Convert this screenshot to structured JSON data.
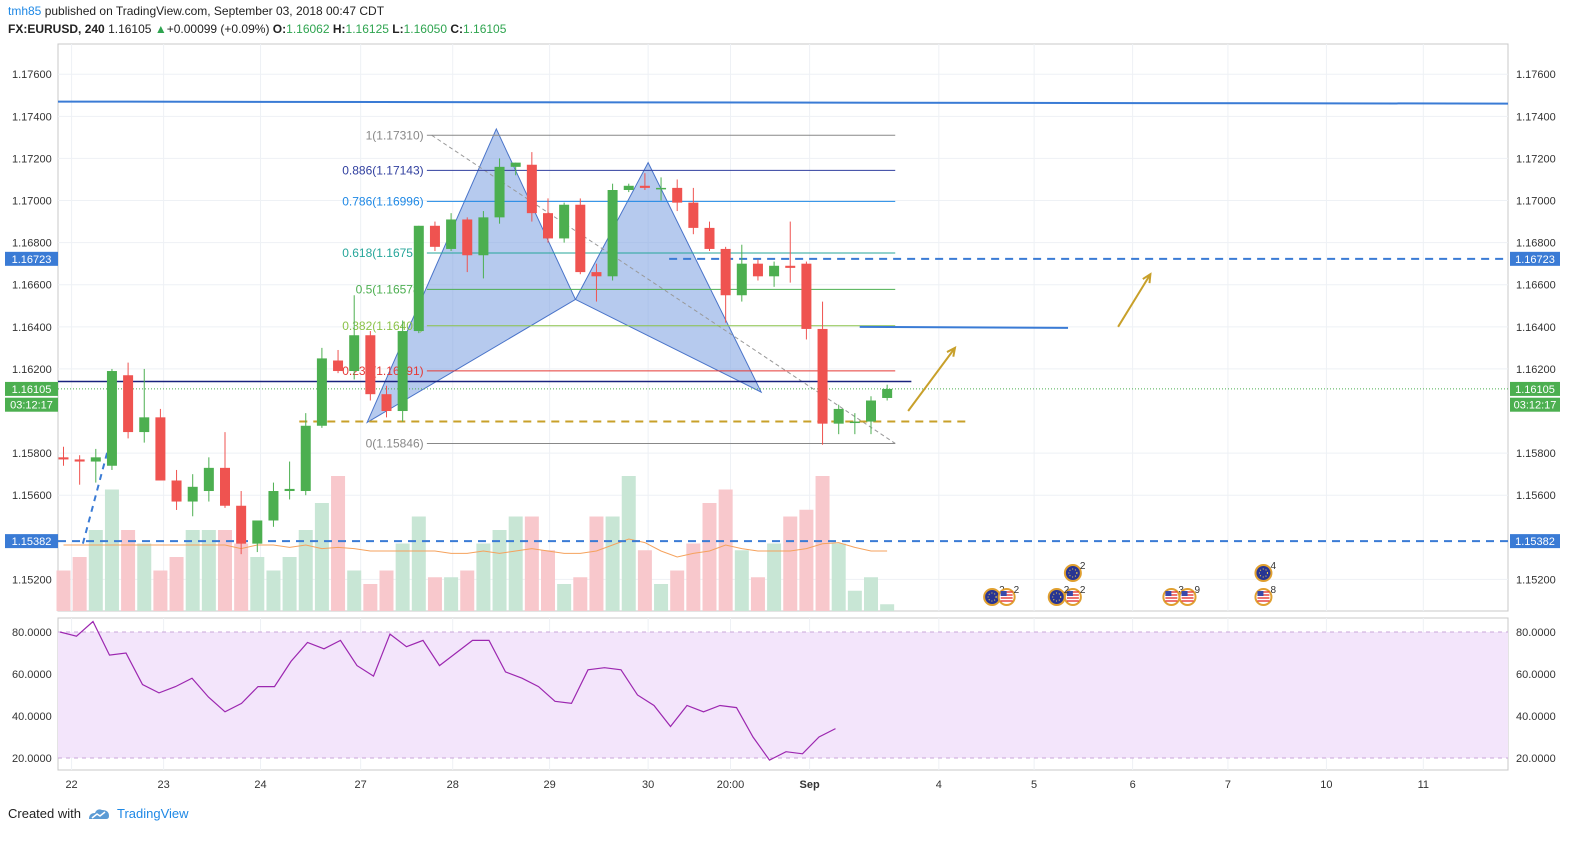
{
  "header": {
    "user": "tmh85",
    "published_text": "published on TradingView.com, September 03, 2018 00:47 CDT",
    "symbol": "FX:EURUSD",
    "interval": "240",
    "last": "1.16105",
    "change_arrow": "▲",
    "change": "+0.00099 (+0.09%)",
    "o_label": "O:",
    "o_value": "1.16062",
    "h_label": "H:",
    "h_value": "1.16125",
    "l_label": "L:",
    "l_value": "1.16050",
    "c_label": "C:",
    "c_value": "1.16105"
  },
  "footer": {
    "created_with": "Created with",
    "brand": "TradingView",
    "logo_icon": "tradingview-cloud-icon"
  },
  "colors": {
    "up": "#4caf50",
    "down": "#ef5350",
    "up_volume": "#c8e6d5",
    "down_volume": "#f8c8cc",
    "pattern_fill": "#7a9fe0",
    "rsi_line": "#9c27b0",
    "rsi_band": "#f3e5fb",
    "dashed_blue": "#3a7bd5",
    "gold": "#c8a02a",
    "price_tag_green": "#4caf50",
    "price_tag_blue": "#3a7bd5"
  },
  "chart_data": {
    "type": "candlestick",
    "symbol": "FX:EURUSD",
    "interval": "240",
    "price_axis": {
      "ylim": [
        1.1505,
        1.1775
      ],
      "ticks": [
        "1.17600",
        "1.17400",
        "1.17200",
        "1.17000",
        "1.16800",
        "1.16600",
        "1.16400",
        "1.16200",
        "1.15800",
        "1.15600",
        "1.15200"
      ]
    },
    "time_axis": {
      "ticks": [
        "22",
        "23",
        "24",
        "27",
        "28",
        "29",
        "30",
        "20:00",
        "Sep",
        "4",
        "5",
        "6",
        "7",
        "10",
        "11"
      ],
      "tick_index": [
        0.5,
        6.2,
        12.2,
        18.4,
        24.1,
        30.1,
        36.2,
        41.3,
        46.2,
        54.2,
        60.1,
        66.2,
        72.1,
        78.2,
        84.2
      ]
    },
    "candles": [
      {
        "o": 1.1578,
        "h": 1.1583,
        "l": 1.1574,
        "c": 1.1577
      },
      {
        "o": 1.1577,
        "h": 1.1579,
        "l": 1.1565,
        "c": 1.1576
      },
      {
        "o": 1.1576,
        "h": 1.1582,
        "l": 1.1566,
        "c": 1.1578
      },
      {
        "o": 1.1574,
        "h": 1.162,
        "l": 1.1572,
        "c": 1.1619
      },
      {
        "o": 1.1617,
        "h": 1.1623,
        "l": 1.1587,
        "c": 1.159
      },
      {
        "o": 1.159,
        "h": 1.162,
        "l": 1.1585,
        "c": 1.1597
      },
      {
        "o": 1.1597,
        "h": 1.1601,
        "l": 1.1567,
        "c": 1.1567
      },
      {
        "o": 1.1567,
        "h": 1.1572,
        "l": 1.1553,
        "c": 1.1557
      },
      {
        "o": 1.1557,
        "h": 1.157,
        "l": 1.155,
        "c": 1.1564
      },
      {
        "o": 1.1562,
        "h": 1.1578,
        "l": 1.1557,
        "c": 1.1573
      },
      {
        "o": 1.1573,
        "h": 1.159,
        "l": 1.1554,
        "c": 1.1555
      },
      {
        "o": 1.1555,
        "h": 1.1562,
        "l": 1.1532,
        "c": 1.1537
      },
      {
        "o": 1.1537,
        "h": 1.1548,
        "l": 1.1533,
        "c": 1.1548
      },
      {
        "o": 1.1548,
        "h": 1.1566,
        "l": 1.1545,
        "c": 1.1562
      },
      {
        "o": 1.1562,
        "h": 1.1576,
        "l": 1.1558,
        "c": 1.1563
      },
      {
        "o": 1.1562,
        "h": 1.1599,
        "l": 1.156,
        "c": 1.1593
      },
      {
        "o": 1.1593,
        "h": 1.163,
        "l": 1.1592,
        "c": 1.1625
      },
      {
        "o": 1.1624,
        "h": 1.1629,
        "l": 1.1618,
        "c": 1.1619
      },
      {
        "o": 1.1619,
        "h": 1.1655,
        "l": 1.1615,
        "c": 1.1636
      },
      {
        "o": 1.1636,
        "h": 1.1638,
        "l": 1.1605,
        "c": 1.1608
      },
      {
        "o": 1.1608,
        "h": 1.1612,
        "l": 1.1597,
        "c": 1.16
      },
      {
        "o": 1.16,
        "h": 1.1643,
        "l": 1.1595,
        "c": 1.1638
      },
      {
        "o": 1.1638,
        "h": 1.1688,
        "l": 1.1637,
        "c": 1.1688
      },
      {
        "o": 1.1688,
        "h": 1.169,
        "l": 1.1676,
        "c": 1.1678
      },
      {
        "o": 1.1677,
        "h": 1.1694,
        "l": 1.1676,
        "c": 1.1691
      },
      {
        "o": 1.1691,
        "h": 1.1692,
        "l": 1.1666,
        "c": 1.1674
      },
      {
        "o": 1.1674,
        "h": 1.1695,
        "l": 1.1663,
        "c": 1.1692
      },
      {
        "o": 1.1692,
        "h": 1.172,
        "l": 1.1689,
        "c": 1.1716
      },
      {
        "o": 1.1716,
        "h": 1.1718,
        "l": 1.1712,
        "c": 1.1718
      },
      {
        "o": 1.1717,
        "h": 1.1723,
        "l": 1.169,
        "c": 1.1694
      },
      {
        "o": 1.1694,
        "h": 1.1701,
        "l": 1.168,
        "c": 1.1682
      },
      {
        "o": 1.1682,
        "h": 1.1699,
        "l": 1.168,
        "c": 1.1698
      },
      {
        "o": 1.1698,
        "h": 1.1701,
        "l": 1.1665,
        "c": 1.1666
      },
      {
        "o": 1.1666,
        "h": 1.167,
        "l": 1.1652,
        "c": 1.1664
      },
      {
        "o": 1.1664,
        "h": 1.1708,
        "l": 1.1662,
        "c": 1.1705
      },
      {
        "o": 1.1705,
        "h": 1.1708,
        "l": 1.1704,
        "c": 1.1707
      },
      {
        "o": 1.1707,
        "h": 1.1713,
        "l": 1.1705,
        "c": 1.1706
      },
      {
        "o": 1.1706,
        "h": 1.1711,
        "l": 1.17,
        "c": 1.1706
      },
      {
        "o": 1.1706,
        "h": 1.171,
        "l": 1.1695,
        "c": 1.1699
      },
      {
        "o": 1.1699,
        "h": 1.1706,
        "l": 1.1684,
        "c": 1.1687
      },
      {
        "o": 1.1687,
        "h": 1.169,
        "l": 1.1676,
        "c": 1.1677
      },
      {
        "o": 1.1677,
        "h": 1.1678,
        "l": 1.1642,
        "c": 1.1655
      },
      {
        "o": 1.1655,
        "h": 1.1679,
        "l": 1.1652,
        "c": 1.167
      },
      {
        "o": 1.167,
        "h": 1.1672,
        "l": 1.1662,
        "c": 1.1664
      },
      {
        "o": 1.1664,
        "h": 1.1671,
        "l": 1.1659,
        "c": 1.1669
      },
      {
        "o": 1.1669,
        "h": 1.169,
        "l": 1.1661,
        "c": 1.1668
      },
      {
        "o": 1.167,
        "h": 1.1671,
        "l": 1.1634,
        "c": 1.1639
      },
      {
        "o": 1.1639,
        "h": 1.1652,
        "l": 1.1584,
        "c": 1.1594
      },
      {
        "o": 1.1594,
        "h": 1.1603,
        "l": 1.1589,
        "c": 1.1601
      },
      {
        "o": 1.1595,
        "h": 1.1599,
        "l": 1.1589,
        "c": 1.1595
      },
      {
        "o": 1.1595,
        "h": 1.1607,
        "l": 1.1589,
        "c": 1.1605
      },
      {
        "o": 1.16062,
        "h": 1.16125,
        "l": 1.1605,
        "c": 1.16105
      }
    ],
    "volume_relative": [
      0.3,
      0.4,
      0.6,
      0.9,
      0.6,
      0.5,
      0.3,
      0.4,
      0.6,
      0.6,
      0.6,
      0.5,
      0.4,
      0.3,
      0.4,
      0.6,
      0.8,
      1.0,
      0.3,
      0.2,
      0.3,
      0.5,
      0.7,
      0.25,
      0.25,
      0.3,
      0.5,
      0.6,
      0.7,
      0.7,
      0.45,
      0.2,
      0.25,
      0.7,
      0.7,
      1.0,
      0.45,
      0.2,
      0.3,
      0.5,
      0.8,
      0.9,
      0.45,
      0.25,
      0.5,
      0.7,
      0.75,
      1.0,
      0.5,
      0.15,
      0.25,
      0.05
    ],
    "volume_ma": [
      0.55,
      0.55,
      0.55,
      0.55,
      0.55,
      0.55,
      0.55,
      0.55,
      0.55,
      0.55,
      0.55,
      0.52,
      0.55,
      0.55,
      0.53,
      0.55,
      0.52,
      0.53,
      0.52,
      0.5,
      0.5,
      0.5,
      0.5,
      0.5,
      0.48,
      0.48,
      0.5,
      0.48,
      0.5,
      0.52,
      0.5,
      0.48,
      0.48,
      0.5,
      0.55,
      0.6,
      0.57,
      0.5,
      0.45,
      0.48,
      0.5,
      0.55,
      0.52,
      0.5,
      0.5,
      0.5,
      0.52,
      0.56,
      0.57,
      0.53,
      0.5,
      0.5
    ],
    "fibonacci": [
      {
        "label": "1(1.17310)",
        "value": 1.1731,
        "color": "#888888"
      },
      {
        "label": "0.886(1.17143)",
        "value": 1.17143,
        "color": "#303f9f"
      },
      {
        "label": "0.786(1.16996)",
        "value": 1.16996,
        "color": "#1e88e5"
      },
      {
        "label": "0.618(1.16751)",
        "value": 1.16751,
        "color": "#26a69a"
      },
      {
        "label": "0.5(1.16578)",
        "value": 1.16578,
        "color": "#4caf50"
      },
      {
        "label": "0.382(1.16405)",
        "value": 1.16405,
        "color": "#8bc34a"
      },
      {
        "label": "0.236(1.16191)",
        "value": 1.16191,
        "color": "#e53935"
      },
      {
        "label": "0(1.15846)",
        "value": 1.15846,
        "color": "#888888"
      }
    ],
    "horizontal_lines": [
      {
        "name": "resistance",
        "value": 1.1747
      },
      {
        "name": "navy-line",
        "value": 1.1614
      },
      {
        "name": "target-dashed",
        "value": 1.16723
      },
      {
        "name": "support-dashed",
        "value": 1.15382
      },
      {
        "name": "gold-dashed",
        "value": 1.1595
      },
      {
        "name": "short-blue",
        "value": 1.164
      }
    ],
    "price_tags": [
      {
        "text": "1.16723",
        "value": 1.16723,
        "kind": "blue"
      },
      {
        "text": "1.16105",
        "value": 1.16105,
        "kind": "green"
      },
      {
        "text": "03:12:17",
        "value": 1.1603,
        "kind": "green"
      },
      {
        "text": "1.15382",
        "value": 1.15382,
        "kind": "blue"
      }
    ],
    "rsi": {
      "ylim": [
        15,
        85
      ],
      "ticks": [
        "80.0000",
        "60.0000",
        "40.0000",
        "20.0000"
      ],
      "upper": 80,
      "lower": 20,
      "values": [
        80,
        78,
        85,
        69,
        70,
        55,
        51,
        54,
        58,
        49,
        42,
        46,
        54,
        54,
        66,
        75,
        72,
        76,
        64,
        59,
        79,
        73,
        76,
        64,
        70,
        76,
        76,
        61,
        58,
        54,
        47,
        46,
        62,
        63,
        62,
        50,
        45,
        35,
        45,
        42,
        45,
        44,
        30,
        19,
        23,
        22,
        30,
        34
      ]
    },
    "events": [
      {
        "label": "2",
        "x_index": 57.5,
        "row": 1,
        "icon": "eu-flag-icon"
      },
      {
        "label": "2",
        "x_index": 58.4,
        "row": 1,
        "icon": "us-flag-icon"
      },
      {
        "label": "2",
        "x_index": 62.5,
        "row": 0,
        "icon": "eu-flag-icon"
      },
      {
        "label": "2",
        "x_index": 62.5,
        "row": 1,
        "icon": "us-flag-icon"
      },
      {
        "label": "2",
        "x_index": 61.5,
        "row": 1,
        "icon": "eu-flag-icon"
      },
      {
        "label": "3",
        "x_index": 68.6,
        "row": 1,
        "icon": "us-flag-icon"
      },
      {
        "label": "9",
        "x_index": 69.6,
        "row": 1,
        "icon": "us-flag-icon"
      },
      {
        "label": "4",
        "x_index": 74.3,
        "row": 0,
        "icon": "eu-flag-icon"
      },
      {
        "label": "8",
        "x_index": 74.3,
        "row": 1,
        "icon": "us-flag-icon"
      }
    ]
  }
}
